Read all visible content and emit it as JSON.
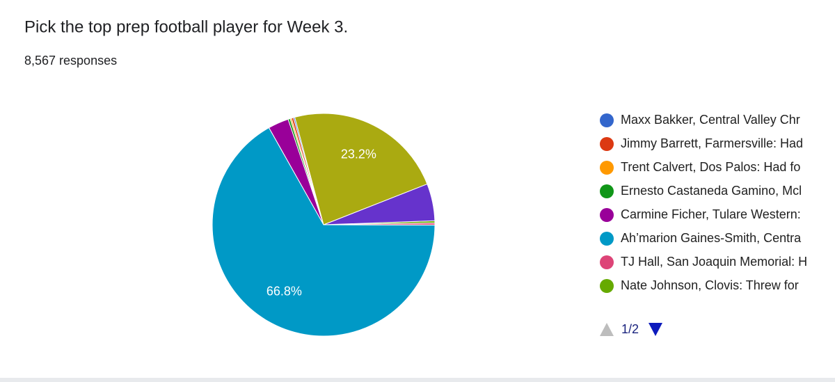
{
  "header": {
    "title": "Pick the top prep football player for Week 3.",
    "responses": "8,567 responses"
  },
  "chart_data": {
    "type": "pie",
    "categories": [
      "Maxx Bakker, Central Valley Chr",
      "Jimmy Barrett, Farmersville: Had",
      "Trent Calvert, Dos Palos: Had fo",
      "Ernesto Castaneda Gamino, Mcl",
      "Carmine Ficher, Tulare Western:",
      "Ah’marion Gaines-Smith, Centra",
      "TJ Hall, San Joaquin Memorial: H",
      "Nate Johnson, Clovis: Threw for",
      null,
      null
    ],
    "values": [
      0.2,
      0.3,
      0.2,
      0.3,
      3.0,
      66.8,
      0.3,
      0.3,
      5.4,
      23.2
    ],
    "value_labels": [
      null,
      null,
      null,
      null,
      null,
      "66.8%",
      null,
      null,
      null,
      "23.2%"
    ],
    "colors": [
      "#3366cc",
      "#dc3912",
      "#ff9900",
      "#109618",
      "#990099",
      "#0099c6",
      "#dd4477",
      "#66aa00",
      "#6633cc",
      "#aaaa11"
    ],
    "legend_page": "1/2"
  }
}
